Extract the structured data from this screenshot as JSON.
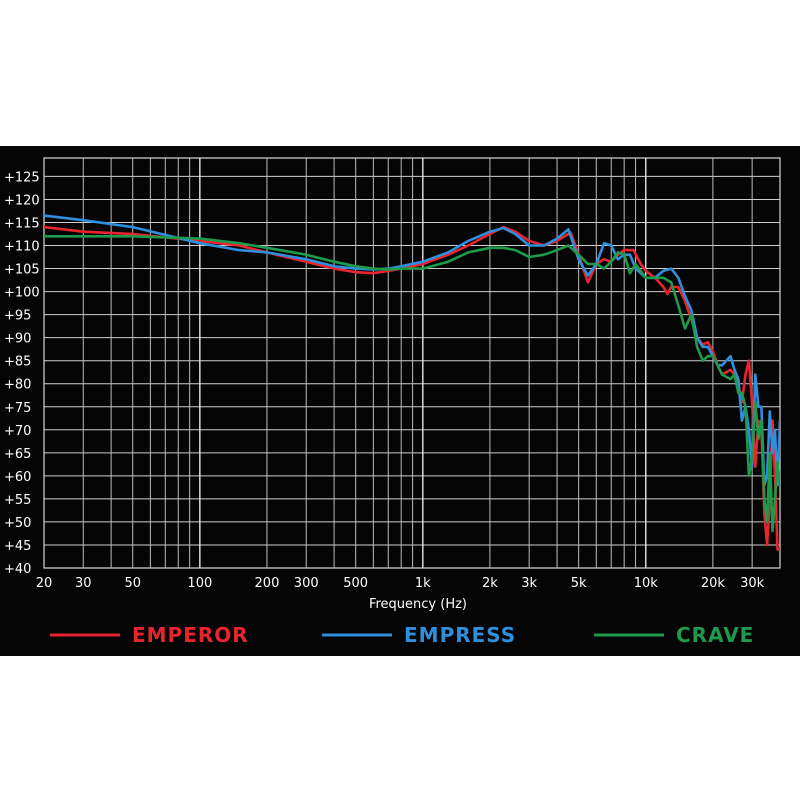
{
  "chart_data": {
    "type": "line",
    "title": "",
    "xlabel": "Frequency (Hz)",
    "ylabel": "",
    "x_scale": "log",
    "xlim": [
      20,
      40000
    ],
    "ylim": [
      40,
      129
    ],
    "grid": true,
    "legend_position": "bottom",
    "x_ticks": [
      {
        "value": 20,
        "label": "20"
      },
      {
        "value": 30,
        "label": "30"
      },
      {
        "value": 50,
        "label": "50"
      },
      {
        "value": 100,
        "label": "100"
      },
      {
        "value": 200,
        "label": "200"
      },
      {
        "value": 300,
        "label": "300"
      },
      {
        "value": 500,
        "label": "500"
      },
      {
        "value": 1000,
        "label": "1k"
      },
      {
        "value": 2000,
        "label": "2k"
      },
      {
        "value": 3000,
        "label": "3k"
      },
      {
        "value": 5000,
        "label": "5k"
      },
      {
        "value": 10000,
        "label": "10k"
      },
      {
        "value": 20000,
        "label": "20k"
      },
      {
        "value": 30000,
        "label": "30k"
      }
    ],
    "y_ticks": [
      {
        "value": 125,
        "label": "+125"
      },
      {
        "value": 120,
        "label": "+120"
      },
      {
        "value": 115,
        "label": "+115"
      },
      {
        "value": 110,
        "label": "+110"
      },
      {
        "value": 105,
        "label": "+105"
      },
      {
        "value": 100,
        "label": "+100"
      },
      {
        "value": 95,
        "label": "+95"
      },
      {
        "value": 90,
        "label": "+90"
      },
      {
        "value": 85,
        "label": "+85"
      },
      {
        "value": 80,
        "label": "+80"
      },
      {
        "value": 75,
        "label": "+75"
      },
      {
        "value": 70,
        "label": "+70"
      },
      {
        "value": 65,
        "label": "+65"
      },
      {
        "value": 60,
        "label": "+60"
      },
      {
        "value": 55,
        "label": "+55"
      },
      {
        "value": 50,
        "label": "+50"
      },
      {
        "value": 45,
        "label": "+45"
      },
      {
        "value": 40,
        "label": "+40"
      }
    ],
    "series": [
      {
        "name": "EMPEROR",
        "color": "#e8242e",
        "points": [
          [
            20,
            114
          ],
          [
            30,
            113
          ],
          [
            50,
            112.5
          ],
          [
            100,
            111
          ],
          [
            150,
            110
          ],
          [
            200,
            108.5
          ],
          [
            300,
            106.5
          ],
          [
            400,
            105
          ],
          [
            500,
            104.2
          ],
          [
            600,
            104
          ],
          [
            700,
            104.5
          ],
          [
            800,
            105
          ],
          [
            1000,
            106
          ],
          [
            1300,
            108
          ],
          [
            1600,
            110
          ],
          [
            2000,
            112.5
          ],
          [
            2300,
            114
          ],
          [
            2600,
            113
          ],
          [
            3000,
            111
          ],
          [
            3500,
            110
          ],
          [
            4000,
            111
          ],
          [
            4600,
            112.8
          ],
          [
            5000,
            108
          ],
          [
            5500,
            102
          ],
          [
            6000,
            106
          ],
          [
            6500,
            107
          ],
          [
            7000,
            106.5
          ],
          [
            7500,
            108
          ],
          [
            8000,
            109
          ],
          [
            8800,
            109
          ],
          [
            9500,
            106
          ],
          [
            10000,
            104.5
          ],
          [
            11000,
            103
          ],
          [
            12000,
            101
          ],
          [
            12500,
            99.5
          ],
          [
            13000,
            101
          ],
          [
            14000,
            101
          ],
          [
            15000,
            98
          ],
          [
            16000,
            94
          ],
          [
            17000,
            90
          ],
          [
            18000,
            88.5
          ],
          [
            19000,
            89
          ],
          [
            20000,
            87
          ],
          [
            21000,
            84
          ],
          [
            22000,
            82
          ],
          [
            24000,
            83
          ],
          [
            25000,
            82
          ],
          [
            26000,
            80
          ],
          [
            27000,
            76
          ],
          [
            28000,
            82
          ],
          [
            29000,
            85
          ],
          [
            30000,
            76
          ],
          [
            31000,
            62
          ],
          [
            32000,
            72
          ],
          [
            33000,
            70
          ],
          [
            34000,
            52
          ],
          [
            35000,
            45
          ],
          [
            36000,
            55
          ],
          [
            37000,
            72
          ],
          [
            38000,
            60
          ],
          [
            39000,
            44
          ],
          [
            40000,
            44
          ]
        ]
      },
      {
        "name": "EMPRESS",
        "color": "#2f8fdc",
        "points": [
          [
            20,
            116.5
          ],
          [
            30,
            115.5
          ],
          [
            50,
            114
          ],
          [
            100,
            110.5
          ],
          [
            150,
            109
          ],
          [
            200,
            108.5
          ],
          [
            300,
            107
          ],
          [
            400,
            105.5
          ],
          [
            500,
            105
          ],
          [
            600,
            104.8
          ],
          [
            700,
            105
          ],
          [
            800,
            105.5
          ],
          [
            1000,
            106.5
          ],
          [
            1300,
            108.5
          ],
          [
            1600,
            111
          ],
          [
            2000,
            113
          ],
          [
            2300,
            113.8
          ],
          [
            2600,
            112.5
          ],
          [
            3000,
            110
          ],
          [
            3500,
            110
          ],
          [
            4000,
            111.5
          ],
          [
            4500,
            113.5
          ],
          [
            5000,
            107
          ],
          [
            5500,
            103.5
          ],
          [
            6000,
            106
          ],
          [
            6500,
            110.5
          ],
          [
            7000,
            110
          ],
          [
            7500,
            107
          ],
          [
            8000,
            108
          ],
          [
            8500,
            108
          ],
          [
            9000,
            105
          ],
          [
            10000,
            103
          ],
          [
            11000,
            103
          ],
          [
            12000,
            104.5
          ],
          [
            13000,
            105
          ],
          [
            14000,
            103
          ],
          [
            15000,
            99
          ],
          [
            16000,
            96
          ],
          [
            17000,
            90
          ],
          [
            18000,
            88
          ],
          [
            19000,
            88
          ],
          [
            20000,
            86
          ],
          [
            21000,
            84
          ],
          [
            22000,
            84
          ],
          [
            24000,
            86
          ],
          [
            25000,
            83
          ],
          [
            26000,
            81
          ],
          [
            27000,
            72
          ],
          [
            28000,
            75
          ],
          [
            29000,
            70
          ],
          [
            30000,
            62
          ],
          [
            31000,
            82
          ],
          [
            32000,
            75
          ],
          [
            33000,
            75
          ],
          [
            34000,
            58
          ],
          [
            35000,
            60
          ],
          [
            36000,
            74
          ],
          [
            37000,
            65
          ],
          [
            38000,
            70
          ],
          [
            39000,
            58
          ],
          [
            40000,
            72
          ]
        ]
      },
      {
        "name": "CRAVE",
        "color": "#1d9a4a",
        "points": [
          [
            20,
            112
          ],
          [
            30,
            112
          ],
          [
            50,
            112
          ],
          [
            100,
            111.5
          ],
          [
            150,
            110.5
          ],
          [
            200,
            109.5
          ],
          [
            300,
            108
          ],
          [
            400,
            106.5
          ],
          [
            500,
            105.5
          ],
          [
            600,
            105
          ],
          [
            700,
            104.8
          ],
          [
            800,
            105
          ],
          [
            1000,
            105
          ],
          [
            1300,
            106.5
          ],
          [
            1600,
            108.5
          ],
          [
            2000,
            109.5
          ],
          [
            2300,
            109.5
          ],
          [
            2600,
            109
          ],
          [
            3000,
            107.5
          ],
          [
            3500,
            108
          ],
          [
            4000,
            109
          ],
          [
            4500,
            110
          ],
          [
            5000,
            108
          ],
          [
            5500,
            106
          ],
          [
            6000,
            106
          ],
          [
            6500,
            105
          ],
          [
            7000,
            106.5
          ],
          [
            7500,
            108.5
          ],
          [
            8000,
            108
          ],
          [
            8500,
            104
          ],
          [
            9000,
            106
          ],
          [
            10000,
            103
          ],
          [
            11000,
            103
          ],
          [
            12000,
            103
          ],
          [
            13000,
            102
          ],
          [
            14000,
            97
          ],
          [
            15000,
            92
          ],
          [
            16000,
            95
          ],
          [
            17000,
            88
          ],
          [
            18000,
            85
          ],
          [
            19000,
            86
          ],
          [
            20000,
            86
          ],
          [
            21000,
            84
          ],
          [
            22000,
            82
          ],
          [
            24000,
            81
          ],
          [
            25000,
            82
          ],
          [
            26000,
            78
          ],
          [
            27000,
            78
          ],
          [
            28000,
            75
          ],
          [
            29000,
            60
          ],
          [
            30000,
            64
          ],
          [
            31000,
            76
          ],
          [
            32000,
            68
          ],
          [
            33000,
            72
          ],
          [
            34000,
            55
          ],
          [
            35000,
            50
          ],
          [
            36000,
            65
          ],
          [
            37000,
            48
          ],
          [
            38000,
            55
          ],
          [
            39000,
            63
          ],
          [
            40000,
            58
          ]
        ]
      }
    ]
  }
}
